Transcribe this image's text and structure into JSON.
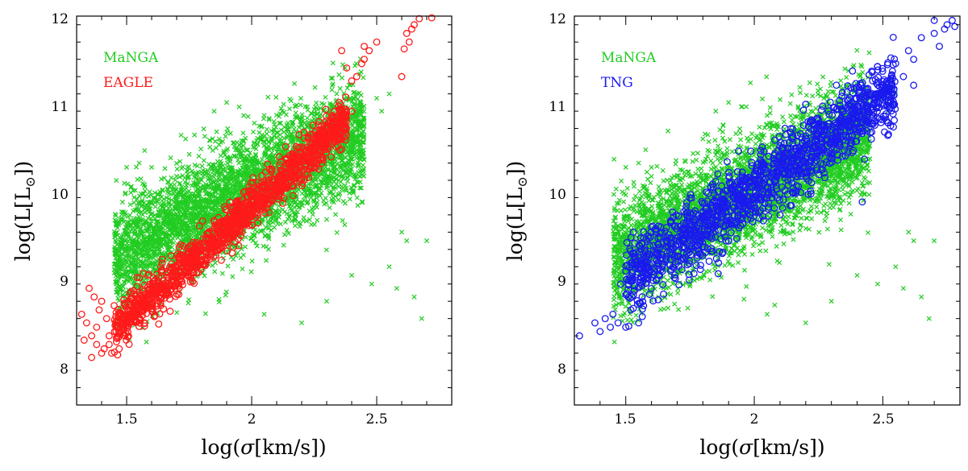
{
  "colors": {
    "manga": "#22cc22",
    "eagle": "#ff1a1a",
    "tng": "#1a1aee",
    "axis": "#000000"
  },
  "chart_data": [
    {
      "type": "scatter",
      "panel": "left",
      "xlabel_parts": {
        "pre": "log(",
        "sym": "σ",
        "post": "[km/s])"
      },
      "ylabel_parts": {
        "pre": "log(L[L",
        "sub": "⊙",
        "post": "])"
      },
      "xlim": [
        1.3,
        2.8
      ],
      "ylim": [
        7.5,
        12
      ],
      "xticks": [
        1.5,
        2,
        2.5
      ],
      "xtick_labels": [
        "1.5",
        "2",
        "2.5"
      ],
      "yticks": [
        8,
        9,
        10,
        11,
        12
      ],
      "ytick_labels": [
        "8",
        "9",
        "10",
        "11",
        "12"
      ],
      "legend": {
        "position": "top-left",
        "entries": [
          "MaNGA",
          "EAGLE"
        ]
      },
      "series": [
        {
          "name": "MaNGA",
          "marker": "x",
          "color": "#22cc22",
          "trend": {
            "slope": 1.5,
            "intercept": 7.0,
            "scatter": 0.33,
            "xmin": 1.45,
            "xmax": 2.45,
            "n": 4200
          },
          "points": [
            [
              2.6,
              9.5
            ],
            [
              2.62,
              9.4
            ],
            [
              2.55,
              9.1
            ],
            [
              2.7,
              9.4
            ],
            [
              2.58,
              8.85
            ],
            [
              2.65,
              8.75
            ],
            [
              2.68,
              8.5
            ],
            [
              2.2,
              8.45
            ],
            [
              2.05,
              8.55
            ],
            [
              2.5,
              11.05
            ],
            [
              2.52,
              10.9
            ],
            [
              2.55,
              11.1
            ],
            [
              2.48,
              8.9
            ],
            [
              2.4,
              9.0
            ],
            [
              2.3,
              8.7
            ],
            [
              1.5,
              10.25
            ],
            [
              1.55,
              10.3
            ],
            [
              1.6,
              10.25
            ],
            [
              1.9,
              11.0
            ],
            [
              1.95,
              10.95
            ],
            [
              1.85,
              10.9
            ],
            [
              2.05,
              10.85
            ],
            [
              1.75,
              9.9
            ],
            [
              1.8,
              10.1
            ]
          ]
        },
        {
          "name": "EAGLE",
          "marker": "o",
          "color": "#ff1a1a",
          "trend": {
            "slope": 2.6,
            "intercept": 4.6,
            "scatter": 0.12,
            "xmin": 1.45,
            "xmax": 2.38,
            "n": 1400
          },
          "points": [
            [
              1.32,
              8.55
            ],
            [
              1.34,
              8.45
            ],
            [
              1.36,
              8.3
            ],
            [
              1.38,
              8.2
            ],
            [
              1.33,
              8.25
            ],
            [
              1.37,
              8.75
            ],
            [
              1.4,
              8.7
            ],
            [
              1.42,
              8.5
            ],
            [
              1.35,
              8.85
            ],
            [
              1.41,
              8.15
            ],
            [
              1.39,
              8.6
            ],
            [
              1.43,
              8.3
            ],
            [
              1.44,
              8.1
            ],
            [
              1.46,
              8.4
            ],
            [
              1.36,
              8.05
            ],
            [
              1.45,
              8.65
            ],
            [
              1.38,
              8.4
            ],
            [
              1.4,
              8.1
            ],
            [
              1.43,
              8.2
            ],
            [
              1.47,
              8.15
            ],
            [
              2.4,
              11.25
            ],
            [
              2.42,
              11.3
            ],
            [
              2.45,
              11.5
            ],
            [
              2.45,
              11.65
            ],
            [
              2.47,
              11.6
            ],
            [
              2.5,
              11.7
            ],
            [
              2.38,
              11.4
            ],
            [
              2.36,
              11.6
            ],
            [
              2.44,
              11.45
            ],
            [
              2.6,
              11.3
            ],
            [
              2.61,
              11.62
            ],
            [
              2.63,
              11.7
            ],
            [
              2.62,
              11.8
            ],
            [
              2.64,
              11.85
            ],
            [
              2.65,
              11.9
            ],
            [
              2.67,
              11.97
            ],
            [
              2.72,
              11.98
            ],
            [
              2.4,
              10.9
            ],
            [
              2.35,
              11.0
            ]
          ]
        }
      ]
    },
    {
      "type": "scatter",
      "panel": "right",
      "xlabel_parts": {
        "pre": "log(",
        "sym": "σ",
        "post": "[km/s])"
      },
      "ylabel_parts": {
        "pre": "log(L[L",
        "sub": "⊙",
        "post": "])"
      },
      "xlim": [
        1.3,
        2.8
      ],
      "ylim": [
        7.5,
        12
      ],
      "xticks": [
        1.5,
        2,
        2.5
      ],
      "xtick_labels": [
        "1.5",
        "2",
        "2.5"
      ],
      "yticks": [
        8,
        9,
        10,
        11,
        12
      ],
      "ytick_labels": [
        "8",
        "9",
        "10",
        "11",
        "12"
      ],
      "legend": {
        "position": "top-left",
        "entries": [
          "MaNGA",
          "TNG"
        ]
      },
      "series": [
        {
          "name": "MaNGA",
          "marker": "x",
          "color": "#22cc22",
          "trend": {
            "slope": 1.5,
            "intercept": 7.0,
            "scatter": 0.33,
            "xmin": 1.45,
            "xmax": 2.45,
            "n": 4200
          },
          "points": [
            [
              2.6,
              9.5
            ],
            [
              2.62,
              9.4
            ],
            [
              2.55,
              9.1
            ],
            [
              2.7,
              9.4
            ],
            [
              2.58,
              8.85
            ],
            [
              2.65,
              8.75
            ],
            [
              2.68,
              8.5
            ],
            [
              2.2,
              8.45
            ],
            [
              2.05,
              8.55
            ],
            [
              2.5,
              11.05
            ],
            [
              2.52,
              10.9
            ],
            [
              2.55,
              11.1
            ],
            [
              2.48,
              8.9
            ],
            [
              2.4,
              9.0
            ],
            [
              2.3,
              8.7
            ],
            [
              1.5,
              10.25
            ],
            [
              1.55,
              10.3
            ],
            [
              1.6,
              10.25
            ],
            [
              1.9,
              11.0
            ],
            [
              1.95,
              10.95
            ],
            [
              1.85,
              10.9
            ],
            [
              2.05,
              10.85
            ],
            [
              1.75,
              9.9
            ],
            [
              1.8,
              10.1
            ]
          ]
        },
        {
          "name": "TNG",
          "marker": "o",
          "color": "#1a1aee",
          "trend": {
            "slope": 2.15,
            "intercept": 5.7,
            "scatter": 0.2,
            "xmin": 1.5,
            "xmax": 2.55,
            "n": 1500
          },
          "points": [
            [
              1.32,
              8.3
            ],
            [
              1.38,
              8.45
            ],
            [
              1.4,
              8.35
            ],
            [
              1.42,
              8.5
            ],
            [
              1.44,
              8.4
            ],
            [
              1.45,
              8.55
            ],
            [
              1.47,
              8.45
            ],
            [
              1.5,
              8.4
            ],
            [
              1.52,
              8.6
            ],
            [
              1.55,
              8.45
            ],
            [
              1.53,
              9.25
            ],
            [
              1.48,
              8.9
            ],
            [
              1.5,
              9.05
            ],
            [
              2.6,
              11.6
            ],
            [
              2.62,
              11.5
            ],
            [
              2.65,
              11.75
            ],
            [
              2.7,
              11.8
            ],
            [
              2.72,
              11.65
            ],
            [
              2.74,
              11.85
            ],
            [
              2.75,
              11.9
            ],
            [
              2.77,
              11.95
            ],
            [
              2.78,
              11.88
            ],
            [
              2.7,
              11.95
            ],
            [
              2.58,
              11.3
            ],
            [
              2.55,
              11.45
            ],
            [
              2.62,
              11.2
            ],
            [
              2.52,
              11.0
            ],
            [
              2.42,
              9.85
            ],
            [
              2.35,
              10.45
            ],
            [
              2.1,
              9.7
            ]
          ]
        }
      ]
    }
  ]
}
